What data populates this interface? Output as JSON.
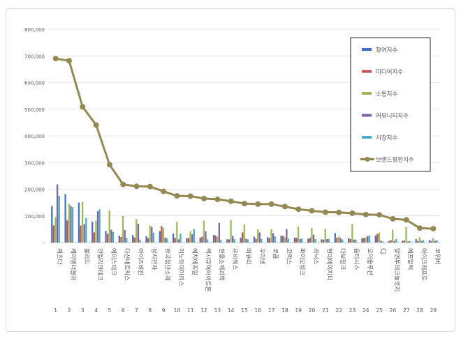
{
  "chart_data": {
    "type": "bar",
    "ylim": [
      0,
      800000
    ],
    "y_ticks": [
      "800,000",
      "700,000",
      "600,000",
      "500,000",
      "400,000",
      "300,000",
      "200,000",
      "100,000",
      "-"
    ],
    "y_tick_values": [
      800000,
      700000,
      600000,
      500000,
      400000,
      300000,
      200000,
      100000,
      0
    ],
    "grid": true,
    "legend_position": "right",
    "categories": [
      "쿼츠다",
      "케이엠더블유",
      "쏠리드",
      "인텔리안테크",
      "에이스테크",
      "다산네트웍스",
      "아이즈비전",
      "삼지전자",
      "한국첨단소재",
      "이노와이어리스",
      "에치에프알",
      "엑시큐어하이트론",
      "한울소재과학",
      "유비쿼스",
      "머큐리",
      "우리넷",
      "코콤",
      "코맥스",
      "파이오링크",
      "라닉스",
      "현대에이치티",
      "다보링크",
      "옵티시스",
      "오이솔루션",
      "CJ",
      "알엔투테크놀로지",
      "에프알텍",
      "아이크래프트",
      "코위버"
    ],
    "ranks": [
      "1",
      "2",
      "3",
      "4",
      "5",
      "6",
      "7",
      "8",
      "9",
      "10",
      "11",
      "12",
      "13",
      "14",
      "15",
      "16",
      "17",
      "18",
      "19",
      "20",
      "21",
      "22",
      "23",
      "24",
      "25",
      "26",
      "27",
      "28",
      "29"
    ],
    "series": [
      {
        "name": "참여지수",
        "kind": "bar",
        "color": "#4472c4",
        "values": [
          137000,
          182000,
          150000,
          78000,
          43000,
          25000,
          28000,
          24000,
          43000,
          33000,
          16000,
          18000,
          29000,
          12000,
          18000,
          22000,
          20000,
          25000,
          18000,
          14000,
          12000,
          35000,
          16000,
          16000,
          26000,
          6000,
          7000,
          13000,
          9000
        ]
      },
      {
        "name": "미디어지수",
        "kind": "bar",
        "color": "#c0504d",
        "values": [
          64000,
          83000,
          64000,
          38000,
          33000,
          21000,
          19000,
          16000,
          62000,
          17000,
          16000,
          22000,
          26000,
          12000,
          38000,
          14000,
          16000,
          25000,
          18000,
          18000,
          11000,
          18000,
          13000,
          17000,
          32000,
          9000,
          7000,
          6000,
          6000
        ]
      },
      {
        "name": "소통지수",
        "kind": "bar",
        "color": "#9bbb59",
        "values": [
          95000,
          145000,
          152000,
          82000,
          120000,
          100000,
          88000,
          63000,
          55000,
          78000,
          42000,
          82000,
          22000,
          85000,
          68000,
          50000,
          50000,
          20000,
          60000,
          55000,
          52000,
          22000,
          68000,
          20000,
          38000,
          48000,
          58000,
          20000,
          16000
        ]
      },
      {
        "name": "커뮤니티지수",
        "kind": "bar",
        "color": "#8064a2",
        "values": [
          218000,
          138000,
          68000,
          117000,
          48000,
          47000,
          70000,
          58000,
          18000,
          12000,
          31000,
          42000,
          74000,
          25000,
          14000,
          38000,
          35000,
          50000,
          13000,
          30000,
          13000,
          17000,
          11000,
          24000,
          7000,
          6000,
          4000,
          6000,
          6000
        ]
      },
      {
        "name": "시장지수",
        "kind": "bar",
        "color": "#4bacc6",
        "values": [
          175000,
          133000,
          92000,
          125000,
          40000,
          17000,
          11000,
          37000,
          15000,
          33000,
          50000,
          12000,
          10000,
          13000,
          12000,
          14000,
          23000,
          15000,
          15000,
          13000,
          14000,
          11000,
          11000,
          26000,
          4000,
          14000,
          5000,
          9000,
          9000
        ]
      },
      {
        "name": "브랜드평판지수",
        "kind": "line",
        "color": "#938953",
        "values": [
          690000,
          682000,
          509000,
          441000,
          292000,
          218000,
          211000,
          210000,
          192000,
          175000,
          174000,
          165000,
          162000,
          155000,
          146000,
          144000,
          144000,
          135000,
          125000,
          119000,
          114000,
          113000,
          110000,
          105000,
          104000,
          89000,
          85000,
          54000,
          52000
        ]
      }
    ]
  }
}
